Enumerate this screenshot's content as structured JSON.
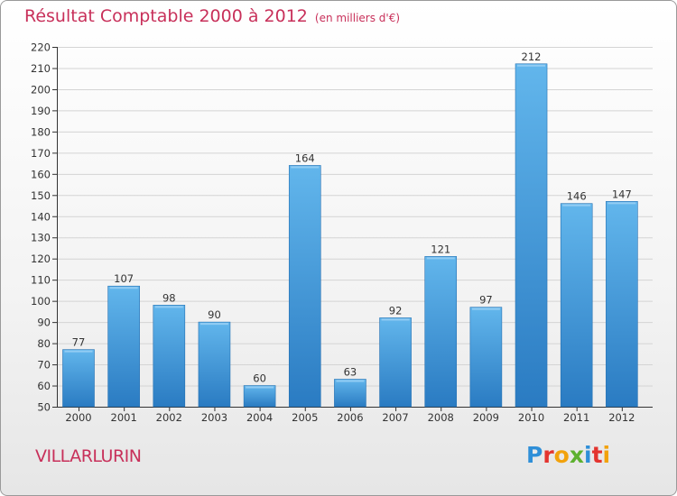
{
  "header": {
    "title": "Résultat Comptable 2000 à 2012",
    "unit": "(en milliers d'€)"
  },
  "footer": {
    "commune": "VILLARLURIN",
    "logo_letters": [
      "P",
      "r",
      "o",
      "x",
      "i",
      "t",
      "i"
    ],
    "logo_colors": [
      "#2f8fd8",
      "#e3342f",
      "#f2a20c",
      "#5db12f",
      "#2f8fd8",
      "#e3342f",
      "#f2a20c"
    ]
  },
  "colors": {
    "bar_light": "#5fb3ea",
    "bar_dark": "#2b7fc6",
    "title": "#c8305a",
    "axis": "#333333"
  },
  "chart_data": {
    "type": "bar",
    "title": "Résultat Comptable 2000 à 2012",
    "subtitle": "(en milliers d'€)",
    "categories": [
      "2000",
      "2001",
      "2002",
      "2003",
      "2004",
      "2005",
      "2006",
      "2007",
      "2008",
      "2009",
      "2010",
      "2011",
      "2012"
    ],
    "values": [
      77,
      107,
      98,
      90,
      60,
      164,
      63,
      92,
      121,
      97,
      212,
      146,
      147
    ],
    "ylim": [
      50,
      220
    ],
    "yticks": [
      50,
      60,
      70,
      80,
      90,
      100,
      110,
      120,
      130,
      140,
      150,
      160,
      170,
      180,
      190,
      200,
      210,
      220
    ],
    "grid": true,
    "data_labels": true
  }
}
